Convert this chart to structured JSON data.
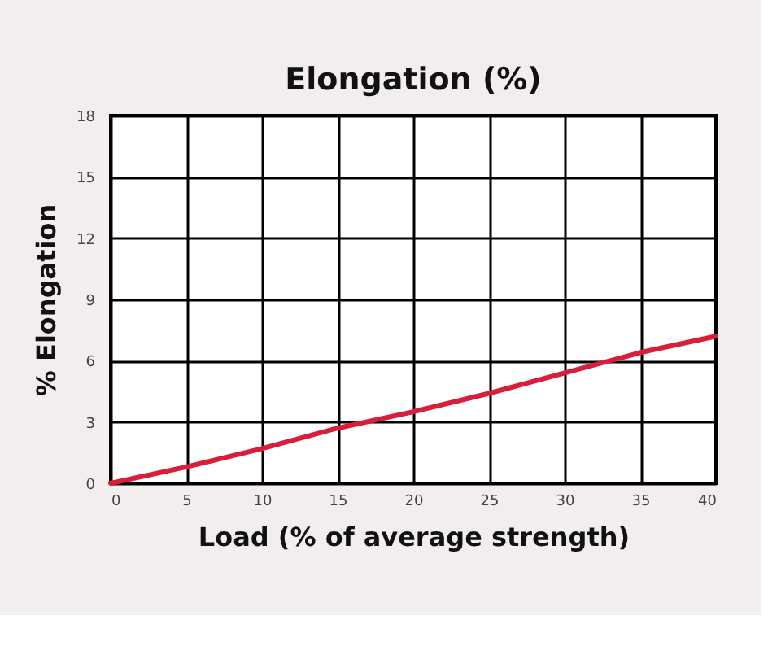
{
  "chart_data": {
    "type": "line",
    "title": "Elongation (%)",
    "xlabel": "Load (% of average strength)",
    "ylabel": "% Elongation",
    "x": [
      0,
      5,
      10,
      15,
      20,
      25,
      30,
      35,
      40
    ],
    "series": [
      {
        "color": "#d81e3a",
        "values": [
          0,
          0.8,
          1.7,
          2.7,
          3.5,
          4.4,
          5.4,
          6.4,
          7.2
        ]
      }
    ],
    "xlim": [
      0,
      40
    ],
    "xticks": [
      0,
      5,
      10,
      15,
      20,
      25,
      30,
      35,
      40
    ],
    "ylim": [
      0,
      18
    ],
    "yticks": [
      0,
      3,
      6,
      9,
      12,
      15,
      18
    ],
    "grid": true,
    "legend": false,
    "marker": "none",
    "line_style": "solid"
  }
}
